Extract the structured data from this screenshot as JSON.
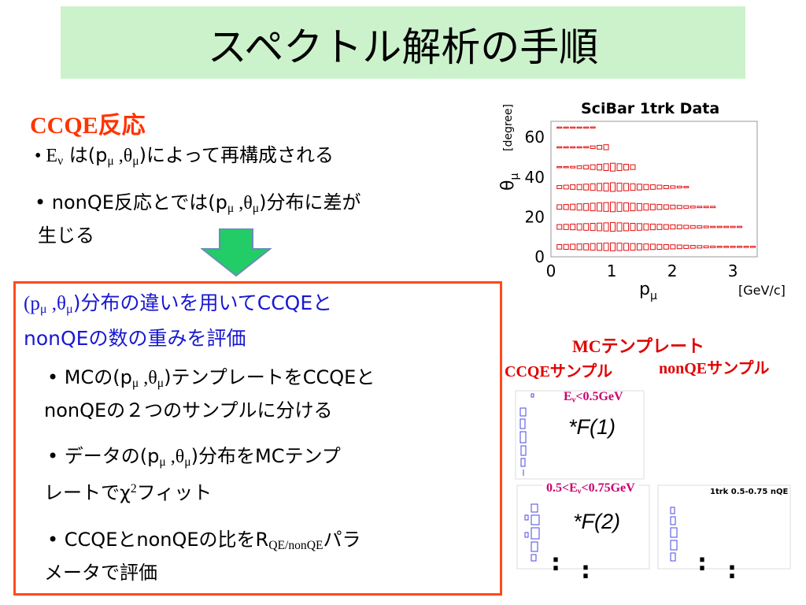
{
  "title": "スペクトル解析の手順",
  "section_title": "CCQE反応",
  "bullets_top": [
    {
      "pre": "• E",
      "sub": "ν",
      "mid": " は(p",
      "sub2": "μ",
      "mid2": " ,θ",
      "sub3": "μ",
      "post": ")によって再構成される"
    },
    {
      "pre": "• nonQE反応とでは(p",
      "sub": "μ",
      "mid": " ,θ",
      "sub2": "μ",
      "post": ")分布に差が",
      "line2": "生じる"
    }
  ],
  "box": {
    "head_line1_pre": "(p",
    "head_sub1": "μ",
    "head_mid": " ,θ",
    "head_sub2": "μ",
    "head_post": ")分布の違いを用いてCCQEと",
    "head_line2": "nonQEの数の重みを評価",
    "bullets": [
      {
        "l1_pre": "• MCの(p",
        "s1": "μ",
        "l1_mid": " ,θ",
        "s2": "μ",
        "l1_post": ")テンプレートをCCQEと",
        "l2": "nonQEの２つのサンプルに分ける"
      },
      {
        "l1_pre": "• データの(p",
        "s1": "μ",
        "l1_mid": " ,θ",
        "s2": "μ",
        "l1_post": ")分布をMCテンプ",
        "l2_pre": "レートでχ",
        "sup": "2",
        "l2_post": "フィット"
      },
      {
        "l1_pre": "• CCQEとnonQEの比をR",
        "s1": "QE/nonQE",
        "l1_post": "パラ",
        "l2": "メータで評価"
      }
    ]
  },
  "main_plot": {
    "title": "SciBar 1trk Data",
    "ylabel_var": "θ",
    "ylabel_sub": "μ",
    "ylabel_unit": "[degree]",
    "xlabel_var": "p",
    "xlabel_sub": "μ",
    "xlabel_unit": "[GeV/c]",
    "x_ticks": [
      "0",
      "1",
      "2",
      "3"
    ],
    "y_ticks": [
      "0",
      "20",
      "40",
      "60"
    ],
    "color": "#e01010"
  },
  "mc_template": {
    "header": "MCテンプレート",
    "ccqe_label": "CCQEサンプル",
    "nonqe_label": "nonQEサンプル",
    "bin1_pre": "E",
    "bin1_sub": "ν",
    "bin1_post": "<0.5GeV",
    "factor1": "*F(1)",
    "bin2_pre": "0.5<E",
    "bin2_sub": "ν",
    "bin2_post": "<0.75GeV",
    "factor2": "*F(2)",
    "thumb_title": "1trk 0.5-0.75 nQE",
    "dots": ":"
  }
}
